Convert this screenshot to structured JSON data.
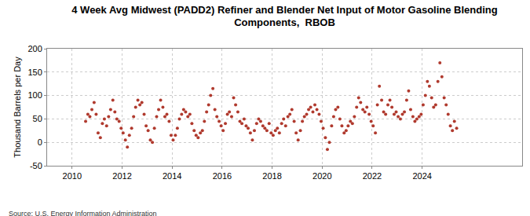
{
  "chart_data": {
    "type": "scatter",
    "title": "4 Week Avg Midwest (PADD2) Refiner and Blender Net Input of Motor Gasoline Blending Components,  RBOB",
    "y_label": "Thousand Barrels per Day",
    "annotations": [
      "Source: U.S. Energy Information Administration"
    ],
    "color": "#b03a2e",
    "marker": "circle",
    "grid": true,
    "xlim": [
      2009,
      2028
    ],
    "xticks": [
      2010,
      2012,
      2014,
      2016,
      2018,
      2020,
      2022,
      2024
    ],
    "ylim": [
      -50,
      200
    ],
    "yticks": [
      -50,
      0,
      50,
      100,
      150,
      200
    ],
    "x": [
      2010.54,
      2010.63,
      2010.71,
      2010.79,
      2010.88,
      2010.96,
      2011.04,
      2011.13,
      2011.21,
      2011.29,
      2011.38,
      2011.46,
      2011.54,
      2011.63,
      2011.71,
      2011.79,
      2011.88,
      2011.96,
      2012.04,
      2012.13,
      2012.21,
      2012.29,
      2012.38,
      2012.46,
      2012.54,
      2012.63,
      2012.71,
      2012.79,
      2012.88,
      2012.96,
      2013.04,
      2013.13,
      2013.21,
      2013.29,
      2013.38,
      2013.46,
      2013.54,
      2013.63,
      2013.71,
      2013.79,
      2013.88,
      2013.96,
      2014.04,
      2014.13,
      2014.21,
      2014.29,
      2014.38,
      2014.46,
      2014.54,
      2014.63,
      2014.71,
      2014.79,
      2014.88,
      2014.96,
      2015.04,
      2015.13,
      2015.21,
      2015.29,
      2015.38,
      2015.46,
      2015.54,
      2015.63,
      2015.71,
      2015.79,
      2015.88,
      2015.96,
      2016.04,
      2016.13,
      2016.21,
      2016.29,
      2016.38,
      2016.46,
      2016.54,
      2016.63,
      2016.71,
      2016.79,
      2016.88,
      2016.96,
      2017.04,
      2017.13,
      2017.21,
      2017.29,
      2017.38,
      2017.46,
      2017.54,
      2017.63,
      2017.71,
      2017.79,
      2017.88,
      2017.96,
      2018.04,
      2018.13,
      2018.21,
      2018.29,
      2018.38,
      2018.46,
      2018.54,
      2018.63,
      2018.71,
      2018.79,
      2018.88,
      2018.96,
      2019.04,
      2019.13,
      2019.21,
      2019.29,
      2019.38,
      2019.46,
      2019.54,
      2019.63,
      2019.71,
      2019.79,
      2019.88,
      2019.96,
      2020.04,
      2020.13,
      2020.21,
      2020.29,
      2020.38,
      2020.46,
      2020.54,
      2020.63,
      2020.71,
      2020.79,
      2020.88,
      2020.96,
      2021.04,
      2021.13,
      2021.21,
      2021.29,
      2021.38,
      2021.46,
      2021.54,
      2021.63,
      2021.71,
      2021.79,
      2021.88,
      2021.96,
      2022.04,
      2022.13,
      2022.21,
      2022.29,
      2022.38,
      2022.46,
      2022.54,
      2022.63,
      2022.71,
      2022.79,
      2022.88,
      2022.96,
      2023.04,
      2023.13,
      2023.21,
      2023.29,
      2023.38,
      2023.46,
      2023.54,
      2023.63,
      2023.71,
      2023.79,
      2023.88,
      2023.96,
      2024.04,
      2024.13,
      2024.21,
      2024.29,
      2024.38,
      2024.46,
      2024.54,
      2024.63,
      2024.71,
      2024.79,
      2024.88,
      2024.96,
      2025.04,
      2025.13,
      2025.21,
      2025.29,
      2025.38
    ],
    "values": [
      45,
      60,
      55,
      70,
      85,
      60,
      20,
      10,
      40,
      50,
      35,
      55,
      70,
      90,
      65,
      50,
      45,
      30,
      20,
      5,
      -10,
      15,
      30,
      55,
      75,
      90,
      80,
      85,
      60,
      35,
      25,
      5,
      0,
      30,
      55,
      70,
      90,
      75,
      55,
      60,
      45,
      15,
      5,
      15,
      30,
      50,
      60,
      70,
      65,
      55,
      60,
      40,
      25,
      15,
      10,
      20,
      25,
      45,
      65,
      80,
      100,
      115,
      70,
      55,
      45,
      35,
      25,
      40,
      60,
      65,
      55,
      95,
      80,
      65,
      45,
      40,
      50,
      35,
      30,
      20,
      5,
      25,
      40,
      50,
      45,
      35,
      30,
      25,
      40,
      20,
      15,
      25,
      30,
      20,
      40,
      50,
      35,
      55,
      60,
      70,
      45,
      20,
      5,
      25,
      45,
      55,
      60,
      70,
      75,
      65,
      80,
      70,
      60,
      45,
      30,
      10,
      -15,
      0,
      35,
      55,
      70,
      75,
      50,
      35,
      20,
      25,
      35,
      45,
      40,
      55,
      75,
      95,
      85,
      70,
      65,
      75,
      60,
      45,
      35,
      20,
      80,
      120,
      90,
      65,
      60,
      80,
      90,
      75,
      60,
      65,
      55,
      50,
      60,
      65,
      90,
      110,
      70,
      55,
      45,
      50,
      55,
      60,
      80,
      100,
      130,
      120,
      95,
      75,
      80,
      130,
      170,
      140,
      95,
      80,
      60,
      35,
      25,
      45,
      30
    ]
  }
}
